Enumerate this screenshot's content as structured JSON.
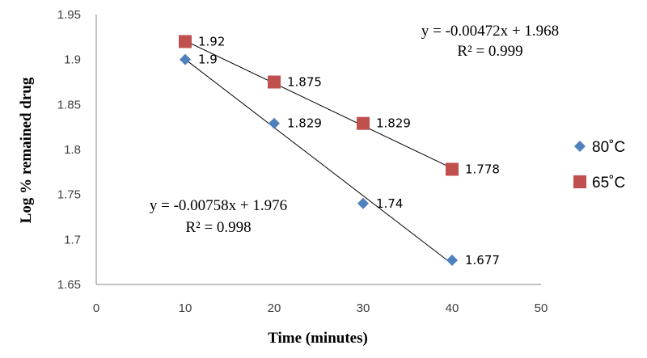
{
  "chart_data": {
    "type": "scatter",
    "xlabel": "Time (minutes)",
    "ylabel": "Log % remained drug",
    "xlim": [
      0,
      50
    ],
    "ylim": [
      1.65,
      1.95
    ],
    "x_ticks": [
      0,
      10,
      20,
      30,
      40,
      50
    ],
    "y_ticks": [
      1.65,
      1.7,
      1.75,
      1.8,
      1.85,
      1.9,
      1.95
    ],
    "x_tick_labels": [
      "0",
      "10",
      "20",
      "30",
      "40",
      "50"
    ],
    "y_tick_labels": [
      "1.65",
      "1.7",
      "1.75",
      "1.8",
      "1.85",
      "1.9",
      "1.95"
    ],
    "grid": false,
    "legend_position": "right",
    "series": [
      {
        "name": "80˚C",
        "marker": "diamond",
        "color": "#4F81BD",
        "x": [
          10,
          20,
          30,
          40
        ],
        "y": [
          1.9,
          1.829,
          1.74,
          1.677
        ],
        "data_labels": [
          "1.9",
          "1.829",
          "1.74",
          "1.677"
        ],
        "trendline": {
          "slope": -0.00758,
          "intercept": 1.976
        },
        "equation": "y = -0.00758x + 1.976",
        "r2": "R² = 0.998"
      },
      {
        "name": "65˚C",
        "marker": "square",
        "color": "#C0504D",
        "x": [
          10,
          20,
          30,
          40
        ],
        "y": [
          1.92,
          1.875,
          1.829,
          1.778
        ],
        "data_labels": [
          "1.92",
          "1.875",
          "1.829",
          "1.778"
        ],
        "trendline": {
          "slope": -0.00472,
          "intercept": 1.968
        },
        "equation": "y = -0.00472x + 1.968",
        "r2": "R² = 0.999"
      }
    ]
  }
}
